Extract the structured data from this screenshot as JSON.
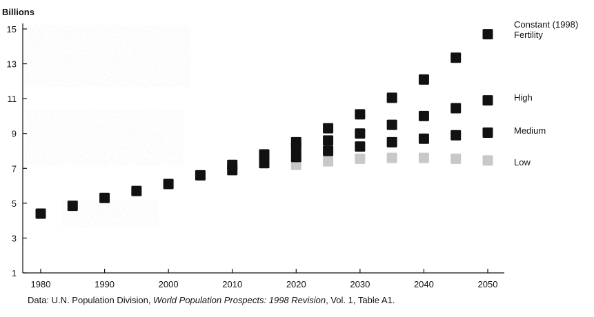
{
  "chart_data": {
    "type": "scatter",
    "ylabel": "Billions",
    "xlim": [
      1978,
      2053
    ],
    "ylim": [
      1,
      15.5
    ],
    "x_ticks": [
      1980,
      1990,
      2000,
      2010,
      2020,
      2030,
      2040,
      2050
    ],
    "y_ticks": [
      1,
      3,
      5,
      7,
      9,
      11,
      13,
      15
    ],
    "legend": "right-side labels",
    "grid": false,
    "series": [
      {
        "name": "Constant (1998) Fertility",
        "color": "#111111",
        "x": [
          1980,
          1985,
          1990,
          1995,
          2000,
          2005,
          2010,
          2015,
          2020,
          2025,
          2030,
          2035,
          2040,
          2045,
          2050
        ],
        "y": [
          4.4,
          4.85,
          5.3,
          5.7,
          6.1,
          6.6,
          7.2,
          7.8,
          8.5,
          9.3,
          10.1,
          11.05,
          12.1,
          13.35,
          14.7
        ]
      },
      {
        "name": "High",
        "color": "#111111",
        "x": [
          2015,
          2020,
          2025,
          2030,
          2035,
          2040,
          2045,
          2050
        ],
        "y": [
          7.55,
          8.2,
          8.6,
          9.0,
          9.5,
          10.0,
          10.45,
          10.9
        ]
      },
      {
        "name": "Medium",
        "color": "#111111",
        "x": [
          2010,
          2015,
          2020,
          2025,
          2030,
          2035,
          2040,
          2045,
          2050
        ],
        "y": [
          6.9,
          7.3,
          7.65,
          8.0,
          8.25,
          8.5,
          8.7,
          8.9,
          9.05
        ]
      },
      {
        "name": "Low",
        "color": "#c8c8c8",
        "x": [
          2020,
          2025,
          2030,
          2035,
          2040,
          2045,
          2050
        ],
        "y": [
          7.2,
          7.4,
          7.55,
          7.6,
          7.6,
          7.55,
          7.45
        ]
      }
    ],
    "source_prefix": "Data: U.N. Population Division, ",
    "source_italic": "World Population Prospects: 1998 Revision",
    "source_suffix": ", Vol. 1, Table A1."
  },
  "series_labels": {
    "constant_line1": "Constant (1998)",
    "constant_line2": "Fertility",
    "high": "High",
    "medium": "Medium",
    "low": "Low"
  }
}
